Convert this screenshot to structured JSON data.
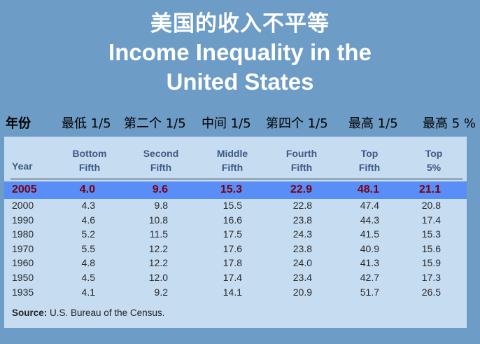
{
  "title": {
    "chinese": "美国的收入不平等",
    "english_line1": "Income Inequality in the",
    "english_line2": "United States"
  },
  "chinese_headers": [
    "年份",
    "最低 1/5",
    "第二个 1/5",
    "中间 1/5",
    "第四个 1/5",
    "最高 1/5",
    "最高 5 %"
  ],
  "table": {
    "year_header": "Year",
    "columns": [
      {
        "line1": "Bottom",
        "line2": "Fifth"
      },
      {
        "line1": "Second",
        "line2": "Fifth"
      },
      {
        "line1": "Middle",
        "line2": "Fifth"
      },
      {
        "line1": "Fourth",
        "line2": "Fifth"
      },
      {
        "line1": "Top",
        "line2": "Fifth"
      },
      {
        "line1": "Top",
        "line2": "5%"
      }
    ],
    "rows": [
      {
        "year": "2005",
        "values": [
          "4.0",
          "9.6",
          "15.3",
          "22.9",
          "48.1",
          "21.1"
        ],
        "highlight": true
      },
      {
        "year": "2000",
        "values": [
          "4.3",
          "9.8",
          "15.5",
          "22.8",
          "47.4",
          "20.8"
        ]
      },
      {
        "year": "1990",
        "values": [
          "4.6",
          "10.8",
          "16.6",
          "23.8",
          "44.3",
          "17.4"
        ]
      },
      {
        "year": "1980",
        "values": [
          "5.2",
          "11.5",
          "17.5",
          "24.3",
          "41.5",
          "15.3"
        ]
      },
      {
        "year": "1970",
        "values": [
          "5.5",
          "12.2",
          "17.6",
          "23.8",
          "40.9",
          "15.6"
        ]
      },
      {
        "year": "1960",
        "values": [
          "4.8",
          "12.2",
          "17.8",
          "24.0",
          "41.3",
          "15.9"
        ]
      },
      {
        "year": "1950",
        "values": [
          "4.5",
          "12.0",
          "17.4",
          "23.4",
          "42.7",
          "17.3"
        ]
      },
      {
        "year": "1935",
        "values": [
          "4.1",
          "9.2",
          "14.1",
          "20.9",
          "51.7",
          "26.5"
        ]
      }
    ],
    "source_label": "Source:",
    "source_text": " U.S. Bureau of the Census."
  },
  "colors": {
    "background": "#6d9cc6",
    "panel": "#c6dcf1",
    "highlight_row": "#5a8ef7",
    "highlight_text": "#7a0010",
    "header_text": "#3c5a84"
  }
}
